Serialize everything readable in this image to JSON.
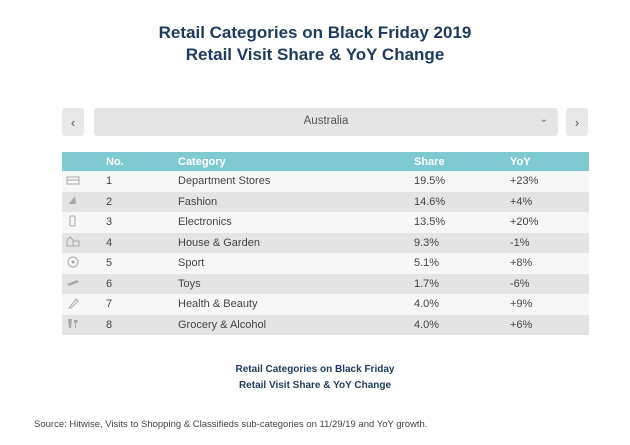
{
  "header": {
    "title_line1": "Retail Categories on Black Friday 2019",
    "title_line2": "Retail Visit Share & YoY Change"
  },
  "selector": {
    "prev_icon": "chevron-left-icon",
    "next_icon": "chevron-right-icon",
    "value": "Australia",
    "chevron_icon": "chevron-down-icon"
  },
  "table": {
    "headers": [
      "",
      "No.",
      "Category",
      "Share",
      "YoY"
    ],
    "rows": [
      {
        "icon": "department-store-icon",
        "no": "1",
        "category": "Department Stores",
        "share": "19.5%",
        "yoy": "+23%"
      },
      {
        "icon": "fashion-icon",
        "no": "2",
        "category": "Fashion",
        "share": "14.6%",
        "yoy": "+4%"
      },
      {
        "icon": "electronics-icon",
        "no": "3",
        "category": "Electronics",
        "share": "13.5%",
        "yoy": "+20%"
      },
      {
        "icon": "house-garden-icon",
        "no": "4",
        "category": "House & Garden",
        "share": "9.3%",
        "yoy": "-1%"
      },
      {
        "icon": "sport-ball-icon",
        "no": "5",
        "category": "Sport",
        "share": "5.1%",
        "yoy": "+8%"
      },
      {
        "icon": "toys-icon",
        "no": "6",
        "category": "Toys",
        "share": "1.7%",
        "yoy": "-6%"
      },
      {
        "icon": "health-beauty-icon",
        "no": "7",
        "category": "Health & Beauty",
        "share": "4.0%",
        "yoy": "+9%"
      },
      {
        "icon": "grocery-alcohol-icon",
        "no": "8",
        "category": "Grocery & Alcohol",
        "share": "4.0%",
        "yoy": "+6%"
      }
    ]
  },
  "caption": {
    "line1": "Retail Categories on Black Friday",
    "line2": "Retail Visit Share & YoY Change"
  },
  "source": "Source: Hitwise, Visits to Shopping & Classifieds sub-categories on 11/29/19 and YoY growth.",
  "colors": {
    "title": "#1f3a5c",
    "header_bg": "#7fc9d3",
    "row_light": "#f7f7f7",
    "row_dark": "#e4e4e4"
  }
}
